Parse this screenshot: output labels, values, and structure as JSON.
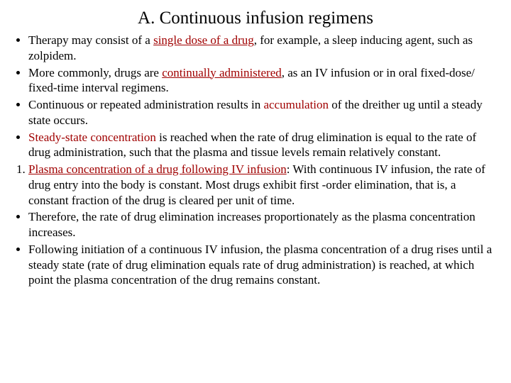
{
  "title": "A. Continuous infusion regimens",
  "colors": {
    "text": "#000000",
    "accent": "#a00000",
    "background": "#ffffff"
  },
  "fontsize": {
    "title": 25,
    "body": 17
  },
  "items": [
    {
      "marker": "•",
      "pre": "Therapy may consist of a ",
      "accent": "single dose of a drug",
      "accent_underline": true,
      "post": ", for example, a sleep inducing agent, such as zolpidem."
    },
    {
      "marker": "•",
      "pre": "More commonly, drugs are ",
      "accent": "continually administered",
      "accent_underline": true,
      "post": ", as an IV infusion or in oral fixed-dose/ fixed-time interval regimens."
    },
    {
      "marker": "•",
      "pre": "Continuous or repeated administration results in ",
      "accent": "accumulation",
      "accent_underline": false,
      "post": " of the dreither ug until a steady state occurs."
    },
    {
      "marker": "•",
      "pre": "",
      "accent": "Steady-state concentration",
      "accent_underline": false,
      "post": " is reached when the rate of drug elimination is equal to the rate of drug administration, such that the plasma and tissue levels remain relatively constant."
    },
    {
      "marker": "1.",
      "pre": " ",
      "accent": "Plasma concentration of a drug following IV infusion",
      "accent_underline": true,
      "post": ": With continuous IV infusion, the rate of drug entry into the body is constant. Most drugs exhibit first -order elimination, that is, a constant fraction of the drug is cleared per unit of time."
    },
    {
      "marker": "•",
      "pre": "Therefore, the rate of drug elimination increases proportionately as the plasma concentration increases.",
      "accent": "",
      "accent_underline": false,
      "post": ""
    },
    {
      "marker": "•",
      "pre": " Following initiation of a continuous IV infusion, the plasma concentration of a drug rises until a steady state (rate of drug elimination equals rate of drug administration) is reached, at which point the plasma concentration of the drug remains constant.",
      "accent": "",
      "accent_underline": false,
      "post": ""
    }
  ]
}
